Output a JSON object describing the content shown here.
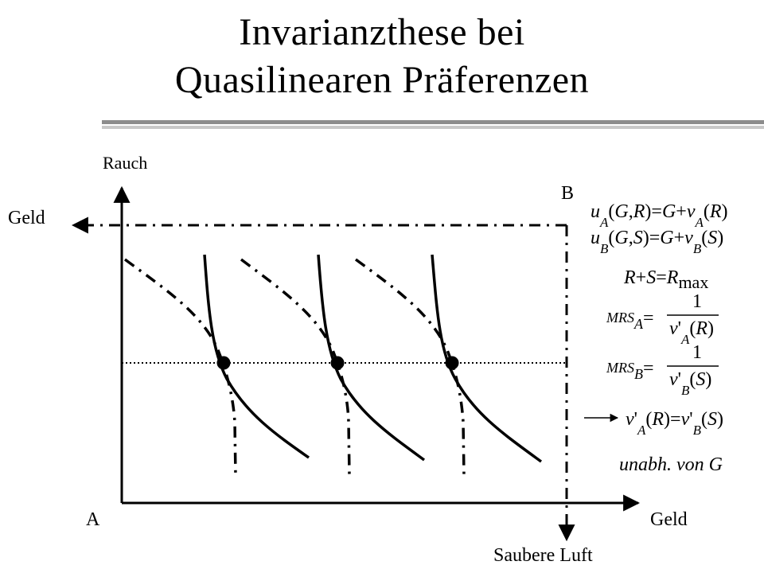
{
  "title": {
    "line1": "Invarianzthese bei",
    "line2": "Quasilinearen Präferenzen"
  },
  "labels": {
    "rauch": "Rauch",
    "geld_left": "Geld",
    "geld_bottom": "Geld",
    "origin_a": "A",
    "origin_b": "B",
    "saubere_luft": "Saubere Luft",
    "note": "unabh. von G"
  },
  "formulas": {
    "uA": "u_A(G,R)=G+v_A(R)",
    "uB": "u_B(G,S)=G+v_B(S)",
    "constraint": "R+S=R_max",
    "mrsA": "MRS_A = 1 / v'_A(R)",
    "mrsB": "MRS_B = 1 / v'_B(S)",
    "condition": "v'_A(R)=v'_B(S)"
  },
  "colors": {
    "ink": "#000000",
    "rule_dark": "#8c8c8c",
    "rule_light": "#c8c8c8"
  }
}
